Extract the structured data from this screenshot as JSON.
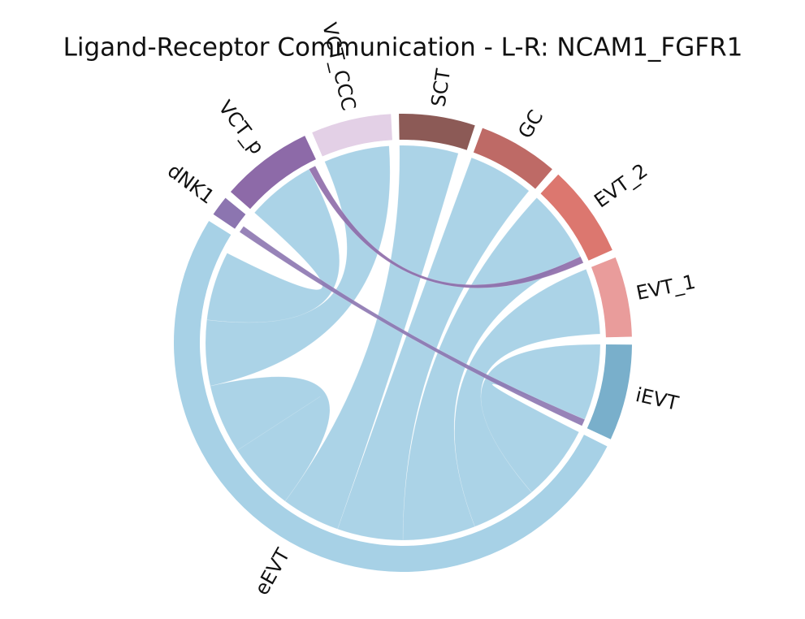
{
  "chart_data": {
    "type": "chord",
    "title": "Ligand-Receptor Communication - L-R: NCAM1_FGFR1",
    "nodes": [
      {
        "name": "SCT",
        "value": 19,
        "color": "#8c5a56"
      },
      {
        "name": "GC",
        "value": 20,
        "color": "#be6a66"
      },
      {
        "name": "EVT_2",
        "value": 23,
        "color": "#dc776f"
      },
      {
        "name": "EVT_1",
        "value": 20,
        "color": "#e99c9b"
      },
      {
        "name": "iEVT",
        "value": 24,
        "color": "#79afcb"
      },
      {
        "name": "eEVT",
        "value": 182,
        "color": "#a7d1e6"
      },
      {
        "name": "dNK1",
        "value": 5,
        "color": "#8c75b0"
      },
      {
        "name": "VCT_p",
        "value": 23,
        "color": "#8d6aa8"
      },
      {
        "name": "VCT_CCC",
        "value": 20,
        "color": "#e3d0e6"
      }
    ],
    "links": [
      {
        "source": "eEVT",
        "target": "iEVT",
        "value": 22
      },
      {
        "source": "eEVT",
        "target": "EVT_1",
        "value": 19
      },
      {
        "source": "eEVT",
        "target": "EVT_2",
        "value": 21
      },
      {
        "source": "eEVT",
        "target": "GC",
        "value": 19
      },
      {
        "source": "eEVT",
        "target": "SCT",
        "value": 17
      },
      {
        "source": "eEVT",
        "target": "eEVT",
        "value": 20
      },
      {
        "source": "eEVT",
        "target": "VCT_CCC",
        "value": 19
      },
      {
        "source": "eEVT",
        "target": "VCT_p",
        "value": 20
      },
      {
        "source": "dNK1",
        "target": "iEVT",
        "value": 2
      },
      {
        "source": "VCT_p",
        "target": "EVT_2",
        "value": 2
      }
    ]
  }
}
